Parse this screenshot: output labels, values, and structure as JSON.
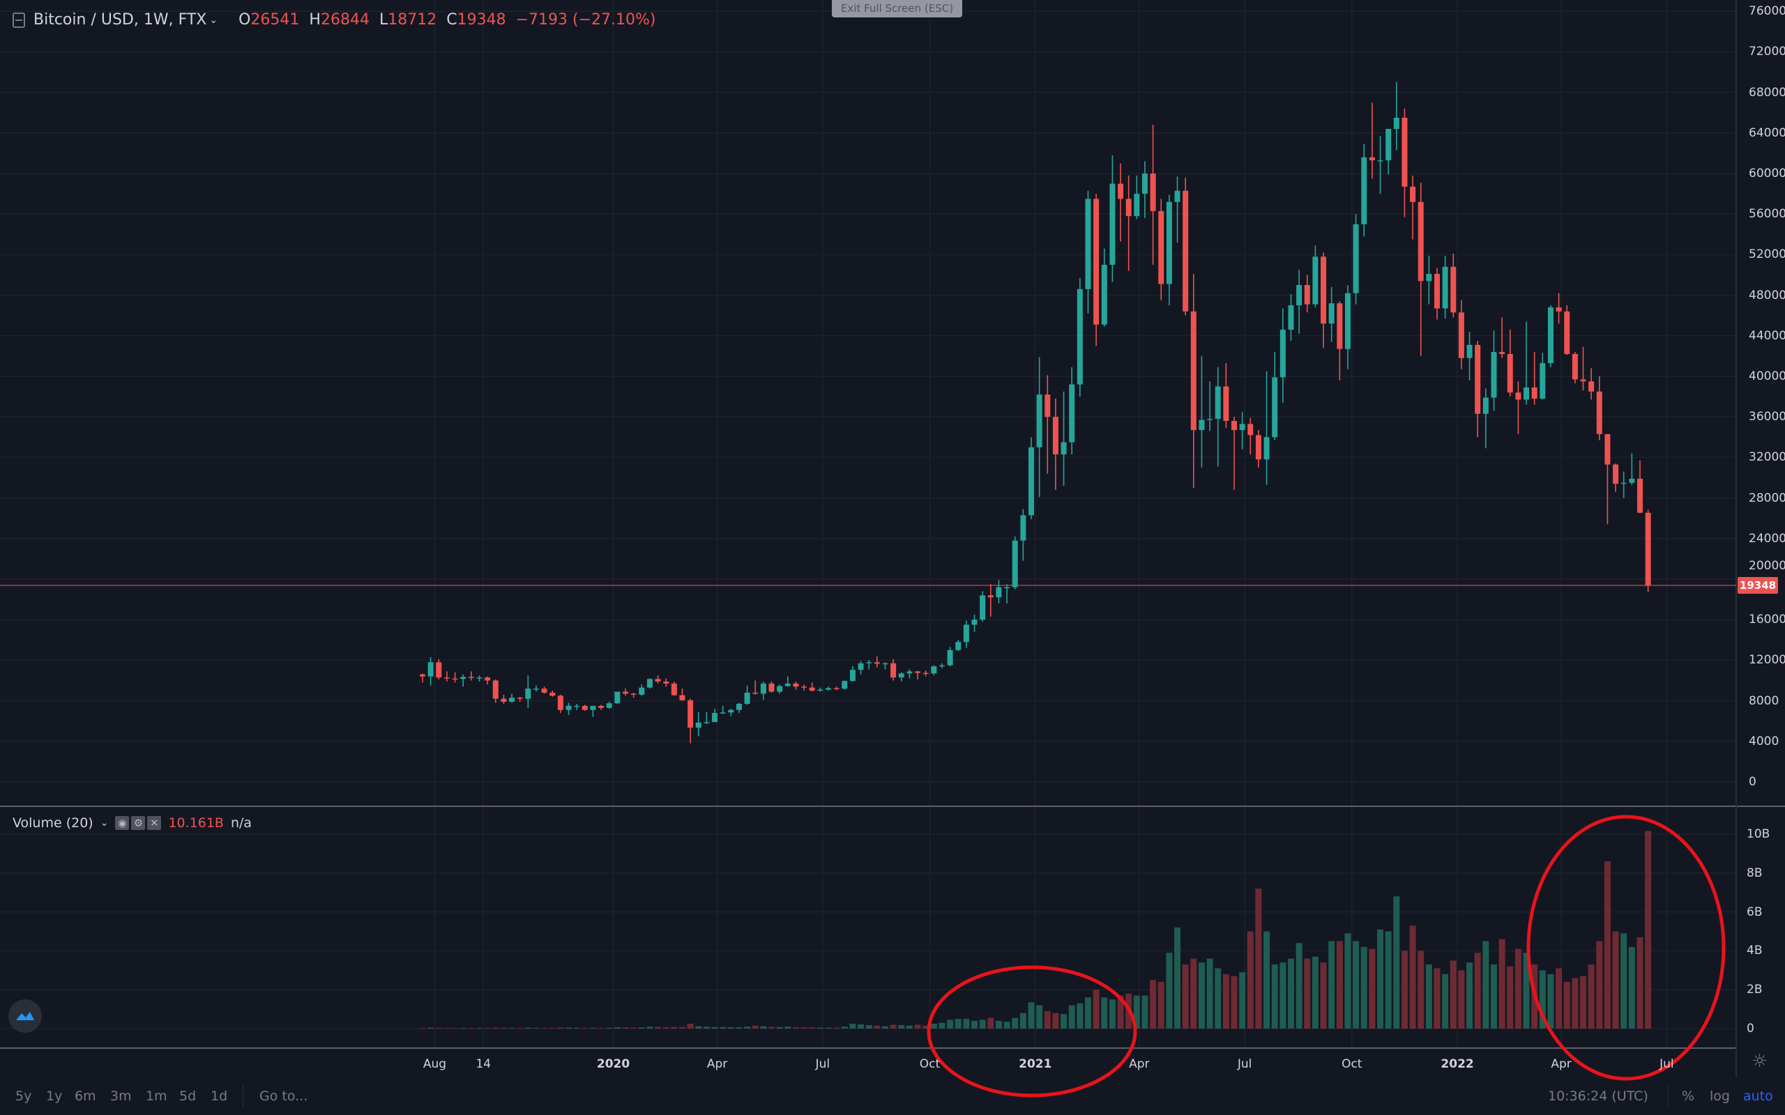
{
  "header": {
    "title": "Bitcoin / USD, 1W, FTX",
    "open_label": "O",
    "open": "26541",
    "high_label": "H",
    "high": "26844",
    "low_label": "L",
    "low": "18712",
    "close_label": "C",
    "close": "19348",
    "change": "−7193 (−27.10%)",
    "exit_fullscreen": "Exit Full Screen (ESC)"
  },
  "colors": {
    "up": "#26a69a",
    "down": "#ef5350",
    "background": "#131722",
    "grid": "#1e222d",
    "annotation": "#e8141b",
    "accent": "#2962ff"
  },
  "volume": {
    "title": "Volume (20)",
    "value": "10.161B",
    "ma": "n/a",
    "axis": [
      "10B",
      "8B",
      "6B",
      "4B",
      "2B",
      "0"
    ]
  },
  "price_axis": [
    "76000",
    "72000",
    "68000",
    "64000",
    "60000",
    "56000",
    "52000",
    "48000",
    "44000",
    "40000",
    "36000",
    "32000",
    "28000",
    "24000",
    "20000",
    "16000",
    "12000",
    "8000",
    "4000",
    "0"
  ],
  "last_price": "19348",
  "time_axis": [
    {
      "t": "Aug",
      "w": 1.5,
      "b": false
    },
    {
      "t": "14",
      "w": 7.5,
      "b": false
    },
    {
      "t": "2020",
      "w": 23.5,
      "b": true
    },
    {
      "t": "Apr",
      "w": 36.3,
      "b": false
    },
    {
      "t": "Jul",
      "w": 49.3,
      "b": false
    },
    {
      "t": "Oct",
      "w": 62.5,
      "b": false
    },
    {
      "t": "2021",
      "w": 75.5,
      "b": true
    },
    {
      "t": "Apr",
      "w": 88.3,
      "b": false
    },
    {
      "t": "Jul",
      "w": 101.3,
      "b": false
    },
    {
      "t": "Oct",
      "w": 114.5,
      "b": false
    },
    {
      "t": "2022",
      "w": 127.5,
      "b": true
    },
    {
      "t": "Apr",
      "w": 140.3,
      "b": false
    },
    {
      "t": "Jul",
      "w": 153.3,
      "b": false
    }
  ],
  "bottom_bar": {
    "ranges": [
      "5y",
      "1y",
      "6m",
      "3m",
      "1m",
      "5d",
      "1d"
    ],
    "goto": "Go to...",
    "clock": "10:36:24 (UTC)",
    "percent": "%",
    "log": "log",
    "auto": "auto"
  },
  "chart_data": {
    "type": "candlestick",
    "interval": "1W",
    "first_week": "2019-07-22",
    "ylim": [
      -2000,
      78000
    ],
    "volume_ylim_billions": [
      0,
      10.5
    ],
    "fields": [
      "open",
      "high",
      "low",
      "close",
      "volume_billions"
    ],
    "candles": [
      [
        10600,
        10700,
        9800,
        10400,
        0.02
      ],
      [
        10400,
        12300,
        9500,
        11800,
        0.05
      ],
      [
        11800,
        12100,
        10100,
        10300,
        0.04
      ],
      [
        10300,
        10900,
        9900,
        10200,
        0.03
      ],
      [
        10200,
        10800,
        9800,
        10150,
        0.03
      ],
      [
        10150,
        10600,
        9400,
        10350,
        0.03
      ],
      [
        10350,
        10900,
        10000,
        10300,
        0.03
      ],
      [
        10300,
        10500,
        9900,
        10300,
        0.03
      ],
      [
        10300,
        10400,
        9600,
        10000,
        0.03
      ],
      [
        10000,
        10100,
        7800,
        8200,
        0.05
      ],
      [
        8200,
        8600,
        7700,
        7900,
        0.04
      ],
      [
        7900,
        8700,
        7800,
        8300,
        0.04
      ],
      [
        8300,
        8400,
        7900,
        8200,
        0.03
      ],
      [
        8200,
        10500,
        7300,
        9200,
        0.05
      ],
      [
        9200,
        9500,
        8900,
        9200,
        0.04
      ],
      [
        9200,
        9400,
        8700,
        8800,
        0.03
      ],
      [
        8800,
        9000,
        8400,
        8500,
        0.04
      ],
      [
        8500,
        8600,
        6800,
        7100,
        0.06
      ],
      [
        7100,
        7800,
        6600,
        7500,
        0.05
      ],
      [
        7500,
        7700,
        7100,
        7500,
        0.04
      ],
      [
        7500,
        7600,
        7000,
        7100,
        0.03
      ],
      [
        7100,
        7500,
        6400,
        7500,
        0.04
      ],
      [
        7500,
        7600,
        7100,
        7300,
        0.03
      ],
      [
        7300,
        7900,
        7200,
        7750,
        0.04
      ],
      [
        7750,
        8500,
        7700,
        8900,
        0.07
      ],
      [
        8900,
        9200,
        8500,
        8700,
        0.06
      ],
      [
        8700,
        8800,
        8300,
        8600,
        0.05
      ],
      [
        8600,
        9600,
        8500,
        9300,
        0.06
      ],
      [
        9300,
        10200,
        9200,
        10150,
        0.1
      ],
      [
        10150,
        10500,
        9700,
        9900,
        0.09
      ],
      [
        9900,
        10200,
        9400,
        9700,
        0.07
      ],
      [
        9700,
        9900,
        8500,
        8550,
        0.08
      ],
      [
        8550,
        9200,
        8000,
        8050,
        0.08
      ],
      [
        8050,
        8200,
        3800,
        5350,
        0.25
      ],
      [
        5350,
        6900,
        4500,
        5850,
        0.12
      ],
      [
        5850,
        6900,
        5700,
        5900,
        0.1
      ],
      [
        5900,
        7200,
        5900,
        6800,
        0.08
      ],
      [
        6800,
        7500,
        6700,
        6850,
        0.08
      ],
      [
        6850,
        7200,
        6500,
        7100,
        0.07
      ],
      [
        7100,
        7800,
        6800,
        7700,
        0.07
      ],
      [
        7700,
        9500,
        7600,
        8800,
        0.1
      ],
      [
        8800,
        10000,
        8600,
        8700,
        0.15
      ],
      [
        8700,
        9900,
        8100,
        9700,
        0.12
      ],
      [
        9700,
        9900,
        8800,
        8900,
        0.09
      ],
      [
        8900,
        9600,
        8700,
        9450,
        0.08
      ],
      [
        9450,
        10400,
        9400,
        9700,
        0.1
      ],
      [
        9700,
        9900,
        9100,
        9400,
        0.07
      ],
      [
        9400,
        9600,
        9000,
        9300,
        0.06
      ],
      [
        9300,
        9800,
        8900,
        9000,
        0.06
      ],
      [
        9000,
        9300,
        8900,
        9100,
        0.05
      ],
      [
        9100,
        9400,
        9000,
        9250,
        0.05
      ],
      [
        9250,
        9400,
        9050,
        9200,
        0.05
      ],
      [
        9200,
        10000,
        9100,
        9950,
        0.1
      ],
      [
        9950,
        11400,
        9900,
        11050,
        0.25
      ],
      [
        11050,
        11900,
        10600,
        11700,
        0.22
      ],
      [
        11700,
        12000,
        11100,
        11800,
        0.18
      ],
      [
        11800,
        12400,
        11300,
        11650,
        0.15
      ],
      [
        11650,
        11800,
        11100,
        11700,
        0.12
      ],
      [
        11700,
        12100,
        10000,
        10300,
        0.2
      ],
      [
        10300,
        10800,
        9900,
        10700,
        0.18
      ],
      [
        10700,
        11100,
        10200,
        10900,
        0.15
      ],
      [
        10900,
        10950,
        10100,
        10750,
        0.2
      ],
      [
        10750,
        11000,
        10400,
        10700,
        0.15
      ],
      [
        10700,
        11500,
        10500,
        11400,
        0.25
      ],
      [
        11400,
        11700,
        11200,
        11500,
        0.3
      ],
      [
        11500,
        13300,
        11400,
        13000,
        0.45
      ],
      [
        13000,
        14000,
        12900,
        13800,
        0.5
      ],
      [
        13800,
        15900,
        13200,
        15500,
        0.5
      ],
      [
        15500,
        16500,
        14800,
        16000,
        0.4
      ],
      [
        16000,
        18800,
        15800,
        18400,
        0.45
      ],
      [
        18400,
        19500,
        16300,
        18200,
        0.55
      ],
      [
        18200,
        19900,
        17600,
        19200,
        0.4
      ],
      [
        19200,
        19500,
        17600,
        19200,
        0.35
      ],
      [
        19200,
        24200,
        19000,
        23800,
        0.55
      ],
      [
        23800,
        26900,
        21800,
        26300,
        0.8
      ],
      [
        26300,
        34000,
        25900,
        33000,
        1.35
      ],
      [
        33000,
        41900,
        28100,
        38200,
        1.2
      ],
      [
        38200,
        40100,
        30400,
        36000,
        0.9
      ],
      [
        36000,
        37800,
        28800,
        32300,
        0.8
      ],
      [
        32300,
        38500,
        29200,
        33500,
        0.75
      ],
      [
        33500,
        40900,
        32300,
        39200,
        1.2
      ],
      [
        39200,
        49700,
        38000,
        48600,
        1.3
      ],
      [
        48600,
        58300,
        46200,
        57500,
        1.6
      ],
      [
        57500,
        58000,
        43000,
        45100,
        2.0
      ],
      [
        45100,
        52600,
        44900,
        51000,
        1.6
      ],
      [
        51000,
        61800,
        49300,
        59000,
        1.5
      ],
      [
        59000,
        61000,
        53300,
        57500,
        1.7
      ],
      [
        57500,
        59800,
        50400,
        55800,
        1.8
      ],
      [
        55800,
        59800,
        55500,
        58000,
        1.7
      ],
      [
        58000,
        61200,
        55600,
        60000,
        1.7
      ],
      [
        60000,
        64800,
        51000,
        56300,
        2.5
      ],
      [
        56300,
        57500,
        47500,
        49100,
        2.4
      ],
      [
        49100,
        57900,
        47000,
        57200,
        3.9
      ],
      [
        57200,
        59700,
        53200,
        58300,
        5.2
      ],
      [
        58300,
        59600,
        46000,
        46400,
        3.3
      ],
      [
        46400,
        50100,
        29000,
        34700,
        3.6
      ],
      [
        34700,
        42000,
        31000,
        35700,
        3.4
      ],
      [
        35700,
        39500,
        34600,
        35800,
        3.6
      ],
      [
        35800,
        40900,
        31100,
        39000,
        3.1
      ],
      [
        39000,
        41300,
        34900,
        35600,
        2.8
      ],
      [
        35600,
        36000,
        28800,
        34700,
        2.7
      ],
      [
        34700,
        36500,
        32800,
        35300,
        2.9
      ],
      [
        35300,
        35900,
        32300,
        34200,
        5.0
      ],
      [
        34200,
        34700,
        31000,
        31800,
        7.2
      ],
      [
        31800,
        40500,
        29300,
        34000,
        5.0
      ],
      [
        34000,
        42400,
        33700,
        39900,
        3.3
      ],
      [
        39900,
        46700,
        37400,
        44600,
        3.4
      ],
      [
        44600,
        48100,
        43500,
        47000,
        3.6
      ],
      [
        47000,
        50500,
        44200,
        49000,
        4.4
      ],
      [
        49000,
        50000,
        46300,
        47100,
        3.6
      ],
      [
        47100,
        52900,
        46800,
        51800,
        3.7
      ],
      [
        51800,
        52200,
        42800,
        45200,
        3.4
      ],
      [
        45200,
        48800,
        43400,
        47200,
        4.5
      ],
      [
        47200,
        47400,
        39600,
        42700,
        4.5
      ],
      [
        42700,
        49000,
        40700,
        48200,
        4.9
      ],
      [
        48200,
        56000,
        47100,
        55000,
        4.5
      ],
      [
        55000,
        62900,
        53800,
        61600,
        4.2
      ],
      [
        61600,
        67000,
        59500,
        61300,
        4.1
      ],
      [
        61300,
        63700,
        58000,
        61300,
        5.1
      ],
      [
        61300,
        64300,
        59900,
        64400,
        5.0
      ],
      [
        64400,
        69000,
        62300,
        65500,
        6.8
      ],
      [
        65500,
        66400,
        55700,
        58700,
        4.0
      ],
      [
        58700,
        59800,
        53500,
        57200,
        5.3
      ],
      [
        57200,
        59100,
        42000,
        49400,
        4.0
      ],
      [
        49400,
        51900,
        47100,
        50100,
        3.3
      ],
      [
        50100,
        50700,
        45600,
        46700,
        3.1
      ],
      [
        46700,
        51900,
        45700,
        50800,
        2.8
      ],
      [
        50800,
        52100,
        45800,
        46300,
        3.5
      ],
      [
        46300,
        47500,
        40700,
        41800,
        3.0
      ],
      [
        41800,
        44400,
        39600,
        43100,
        3.4
      ],
      [
        43100,
        43500,
        34000,
        36300,
        3.9
      ],
      [
        36300,
        38800,
        32900,
        37900,
        4.5
      ],
      [
        37900,
        44500,
        36600,
        42400,
        3.3
      ],
      [
        42400,
        45800,
        41800,
        42200,
        4.6
      ],
      [
        42200,
        44600,
        38000,
        38400,
        3.2
      ],
      [
        38400,
        39500,
        34300,
        37700,
        4.1
      ],
      [
        37700,
        45400,
        37200,
        38900,
        3.9
      ],
      [
        38900,
        42400,
        37200,
        37800,
        3.3
      ],
      [
        37800,
        42300,
        37700,
        41300,
        3.0
      ],
      [
        41300,
        47000,
        40900,
        46800,
        2.8
      ],
      [
        46800,
        48200,
        45200,
        46400,
        3.1
      ],
      [
        46400,
        47000,
        42100,
        42200,
        2.4
      ],
      [
        42200,
        42400,
        39300,
        39700,
        2.6
      ],
      [
        39700,
        42900,
        38600,
        39500,
        2.7
      ],
      [
        39500,
        40800,
        37700,
        38500,
        3.3
      ],
      [
        38500,
        40000,
        33700,
        34300,
        4.5
      ],
      [
        34300,
        34300,
        25400,
        31300,
        8.6
      ],
      [
        31300,
        31400,
        28600,
        29400,
        5.0
      ],
      [
        29400,
        30600,
        28000,
        29500,
        4.9
      ],
      [
        29500,
        32400,
        29300,
        29900,
        4.2
      ],
      [
        29900,
        31700,
        26500,
        26541,
        4.7
      ],
      [
        26541,
        26844,
        18712,
        19348,
        10.161
      ]
    ]
  }
}
